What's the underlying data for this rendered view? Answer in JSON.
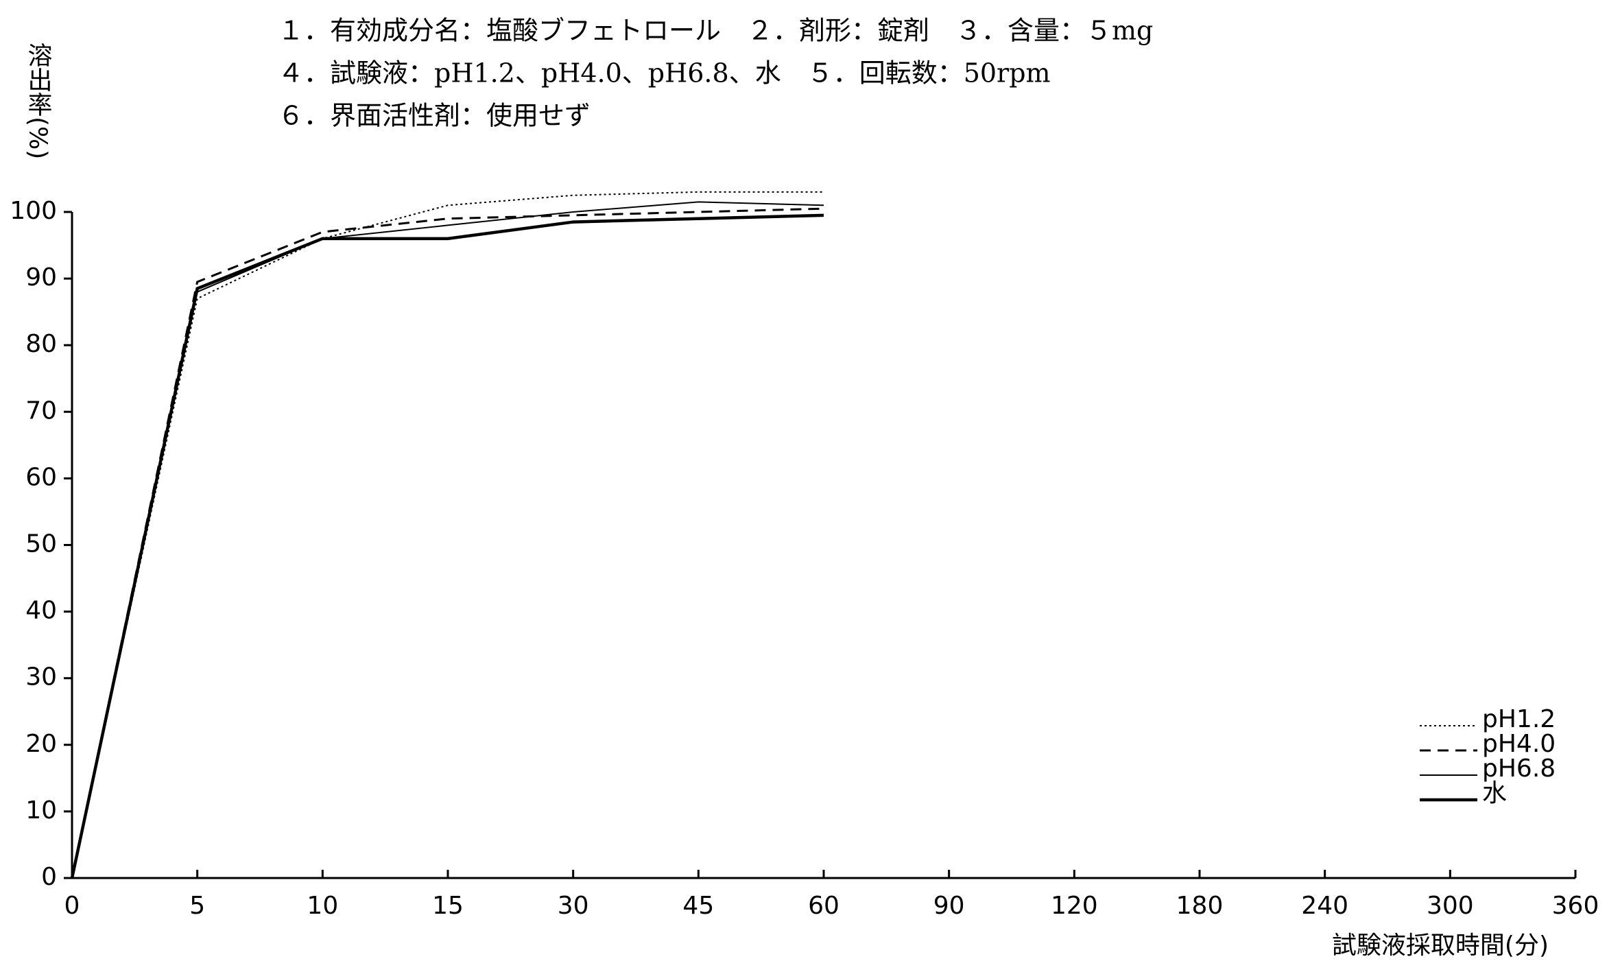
{
  "chart_data": {
    "type": "line",
    "title_lines": [
      "１．有効成分名：塩酸ブフェトロール　２．剤形：錠剤　３．含量：５mg",
      "４．試験液：pH1.2、pH4.0、pH6.8、水　５．回転数：50rpm",
      "６．界面活性剤：使用せず"
    ],
    "y_label": "溶出率(%)",
    "x_label": "試験液採取時間(分)",
    "categories": [
      "0",
      "5",
      "10",
      "15",
      "30",
      "45",
      "60",
      "90",
      "120",
      "180",
      "240",
      "300",
      "360"
    ],
    "series": [
      {
        "name": "pH1.2",
        "color": "#000000",
        "line_style": "dotted",
        "line_width": 2,
        "values": [
          0,
          87,
          96,
          101,
          102.5,
          103,
          103,
          null,
          null,
          null,
          null,
          null,
          null
        ]
      },
      {
        "name": "pH4.0",
        "color": "#000000",
        "line_style": "dashed",
        "line_width": 3,
        "values": [
          0,
          89.5,
          97,
          99,
          99.5,
          100,
          100.5,
          null,
          null,
          null,
          null,
          null,
          null
        ]
      },
      {
        "name": "pH6.8",
        "color": "#000000",
        "line_style": "solid",
        "line_width": 2,
        "values": [
          0,
          88,
          96,
          98,
          100,
          101.5,
          101,
          null,
          null,
          null,
          null,
          null,
          null
        ]
      },
      {
        "name": "水",
        "color": "#000000",
        "line_style": "solid",
        "line_width": 4.5,
        "values": [
          0,
          88.5,
          96,
          96,
          98.5,
          99,
          99.5,
          null,
          null,
          null,
          null,
          null,
          null
        ]
      }
    ],
    "ylim": [
      0,
      100
    ],
    "yticks": [
      0,
      10,
      20,
      30,
      40,
      50,
      60,
      70,
      80,
      90,
      100
    ],
    "grid": false,
    "legend": "lower right"
  }
}
